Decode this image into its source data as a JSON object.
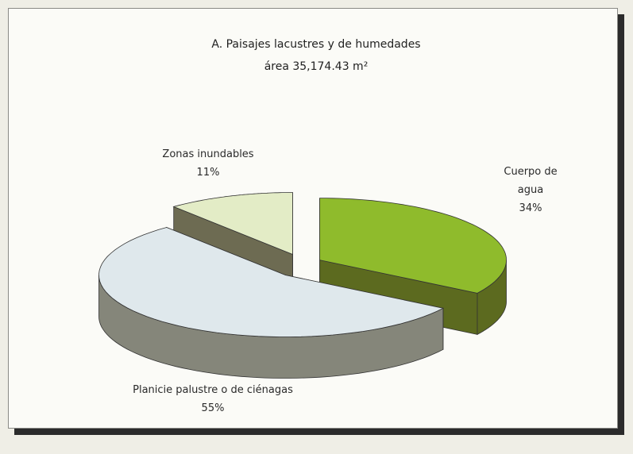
{
  "chart_data": {
    "type": "pie3d",
    "title": "A. Paisajes lacustres y de humedades",
    "subtitle": "área 35,174.43 m²",
    "categories": [
      "Cuerpo de agua",
      "Planicie palustre o de ciénagas",
      "Zonas inundables"
    ],
    "values": [
      34,
      55,
      11
    ],
    "value_labels": [
      "34%",
      "55%",
      "11%"
    ],
    "colors": [
      "#8fbb2c",
      "#dfe8ec",
      "#e3ecc6"
    ],
    "side_colors": [
      "#5c6a1f",
      "#85867a",
      "#6d6b52"
    ]
  }
}
